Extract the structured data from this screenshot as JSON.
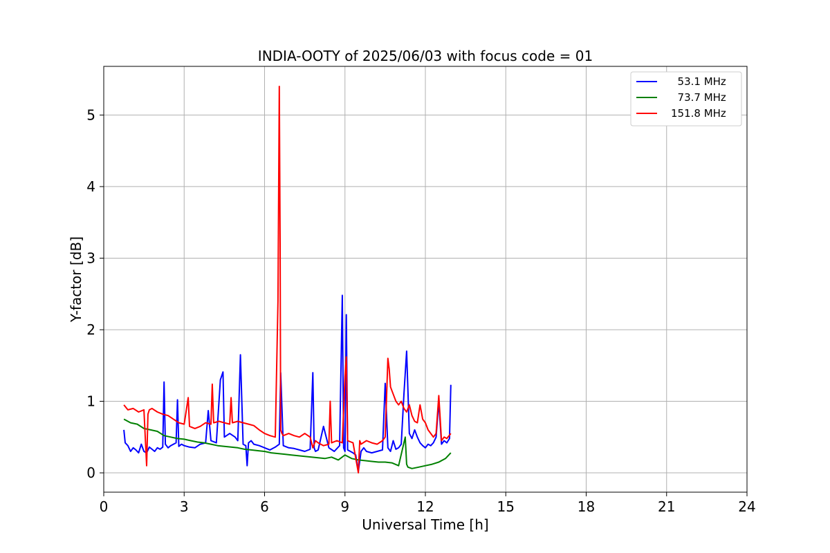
{
  "chart_data": {
    "type": "line",
    "title": "INDIA-OOTY of 2025/06/03 with focus code = 01",
    "xlabel": "Universal Time [h]",
    "ylabel": "Y-factor [dB]",
    "xlim": [
      0,
      24
    ],
    "ylim": [
      -0.27,
      5.68
    ],
    "xticks": [
      0,
      3,
      6,
      9,
      12,
      15,
      18,
      21,
      24
    ],
    "yticks": [
      0,
      1,
      2,
      3,
      4,
      5
    ],
    "grid": true,
    "legend_position": "top-right",
    "series": [
      {
        "name": "  53.1 MHz",
        "color": "#0000ff",
        "x": [
          0.75,
          0.8,
          0.9,
          1.0,
          1.1,
          1.2,
          1.3,
          1.4,
          1.5,
          1.6,
          1.7,
          1.8,
          1.9,
          2.0,
          2.1,
          2.2,
          2.25,
          2.3,
          2.4,
          2.5,
          2.6,
          2.7,
          2.75,
          2.8,
          2.9,
          3.0,
          3.2,
          3.4,
          3.6,
          3.8,
          3.9,
          4.0,
          4.2,
          4.35,
          4.45,
          4.5,
          4.7,
          4.9,
          5.0,
          5.1,
          5.2,
          5.3,
          5.35,
          5.4,
          5.5,
          5.6,
          5.8,
          6.0,
          6.2,
          6.4,
          6.55,
          6.6,
          6.7,
          6.9,
          7.1,
          7.3,
          7.5,
          7.7,
          7.8,
          7.85,
          7.9,
          8.0,
          8.2,
          8.4,
          8.6,
          8.8,
          8.9,
          8.95,
          9.0,
          9.05,
          9.1,
          9.2,
          9.3,
          9.4,
          9.5,
          9.6,
          9.7,
          9.8,
          10.0,
          10.2,
          10.4,
          10.5,
          10.6,
          10.7,
          10.8,
          10.9,
          11.0,
          11.1,
          11.2,
          11.3,
          11.4,
          11.5,
          11.6,
          11.7,
          11.8,
          11.9,
          12.0,
          12.1,
          12.2,
          12.3,
          12.4,
          12.5,
          12.6,
          12.7,
          12.8,
          12.9,
          12.95
        ],
        "values": [
          0.6,
          0.42,
          0.38,
          0.3,
          0.35,
          0.32,
          0.28,
          0.4,
          0.3,
          0.28,
          0.36,
          0.33,
          0.3,
          0.35,
          0.33,
          0.36,
          1.27,
          0.4,
          0.35,
          0.38,
          0.4,
          0.42,
          1.02,
          0.37,
          0.4,
          0.38,
          0.36,
          0.35,
          0.4,
          0.42,
          0.87,
          0.45,
          0.42,
          1.3,
          1.41,
          0.5,
          0.55,
          0.5,
          0.45,
          1.65,
          0.4,
          0.38,
          0.1,
          0.42,
          0.45,
          0.4,
          0.38,
          0.35,
          0.32,
          0.36,
          0.4,
          1.4,
          0.38,
          0.35,
          0.34,
          0.32,
          0.3,
          0.33,
          1.4,
          0.35,
          0.3,
          0.32,
          0.65,
          0.35,
          0.3,
          0.38,
          2.48,
          0.35,
          0.3,
          2.21,
          0.32,
          0.3,
          0.28,
          0.25,
          0.02,
          0.3,
          0.35,
          0.3,
          0.28,
          0.3,
          0.32,
          1.25,
          0.35,
          0.3,
          0.45,
          0.33,
          0.35,
          0.4,
          1.1,
          1.7,
          0.55,
          0.48,
          0.6,
          0.5,
          0.42,
          0.38,
          0.35,
          0.4,
          0.38,
          0.42,
          0.5,
          1.0,
          0.4,
          0.45,
          0.42,
          0.48,
          1.23
        ]
      },
      {
        "name": "  73.7 MHz",
        "color": "#008000",
        "x": [
          0.75,
          1.0,
          1.25,
          1.5,
          1.75,
          2.0,
          2.25,
          2.5,
          2.75,
          3.0,
          3.25,
          3.5,
          3.75,
          4.0,
          4.25,
          4.5,
          4.75,
          5.0,
          5.25,
          5.5,
          5.75,
          6.0,
          6.25,
          6.5,
          6.75,
          7.0,
          7.25,
          7.5,
          7.75,
          8.0,
          8.25,
          8.5,
          8.75,
          9.0,
          9.25,
          9.5,
          9.75,
          10.0,
          10.25,
          10.5,
          10.75,
          11.0,
          11.25,
          11.3,
          11.35,
          11.5,
          11.75,
          12.0,
          12.25,
          12.5,
          12.75,
          12.95
        ],
        "values": [
          0.75,
          0.7,
          0.68,
          0.62,
          0.6,
          0.58,
          0.52,
          0.5,
          0.48,
          0.47,
          0.45,
          0.43,
          0.42,
          0.4,
          0.38,
          0.37,
          0.36,
          0.35,
          0.33,
          0.32,
          0.31,
          0.3,
          0.28,
          0.27,
          0.26,
          0.25,
          0.24,
          0.23,
          0.22,
          0.21,
          0.2,
          0.22,
          0.18,
          0.25,
          0.2,
          0.18,
          0.17,
          0.16,
          0.15,
          0.15,
          0.14,
          0.1,
          0.5,
          0.12,
          0.08,
          0.06,
          0.08,
          0.1,
          0.12,
          0.15,
          0.2,
          0.28
        ]
      },
      {
        "name": "151.8 MHz",
        "color": "#ff0000",
        "x": [
          0.75,
          0.9,
          1.1,
          1.3,
          1.5,
          1.6,
          1.65,
          1.7,
          1.8,
          2.0,
          2.2,
          2.4,
          2.6,
          2.8,
          3.0,
          3.15,
          3.2,
          3.4,
          3.6,
          3.8,
          4.0,
          4.05,
          4.1,
          4.3,
          4.5,
          4.7,
          4.75,
          4.8,
          5.0,
          5.2,
          5.4,
          5.6,
          5.8,
          6.0,
          6.2,
          6.4,
          6.5,
          6.55,
          6.58,
          6.6,
          6.65,
          6.7,
          6.9,
          7.1,
          7.3,
          7.5,
          7.7,
          7.8,
          7.9,
          8.0,
          8.2,
          8.4,
          8.45,
          8.5,
          8.7,
          8.9,
          9.0,
          9.05,
          9.1,
          9.3,
          9.5,
          9.55,
          9.6,
          9.8,
          10.0,
          10.2,
          10.4,
          10.5,
          10.6,
          10.65,
          10.7,
          10.8,
          10.9,
          11.0,
          11.1,
          11.2,
          11.3,
          11.4,
          11.5,
          11.6,
          11.7,
          11.8,
          11.9,
          12.0,
          12.1,
          12.2,
          12.3,
          12.4,
          12.5,
          12.6,
          12.7,
          12.8,
          12.95
        ],
        "values": [
          0.95,
          0.88,
          0.9,
          0.85,
          0.88,
          0.1,
          0.82,
          0.88,
          0.9,
          0.85,
          0.82,
          0.8,
          0.75,
          0.7,
          0.68,
          1.05,
          0.65,
          0.62,
          0.65,
          0.7,
          0.68,
          1.24,
          0.7,
          0.72,
          0.7,
          0.68,
          1.05,
          0.7,
          0.72,
          0.7,
          0.68,
          0.66,
          0.6,
          0.55,
          0.52,
          0.5,
          2.4,
          5.4,
          3.2,
          0.6,
          0.55,
          0.52,
          0.55,
          0.52,
          0.5,
          0.55,
          0.5,
          0.35,
          0.45,
          0.42,
          0.38,
          0.4,
          1.0,
          0.42,
          0.45,
          0.42,
          1.35,
          1.62,
          0.45,
          0.42,
          0.0,
          0.45,
          0.4,
          0.45,
          0.42,
          0.4,
          0.45,
          0.5,
          1.6,
          1.45,
          1.2,
          1.1,
          1.0,
          0.95,
          1.0,
          0.9,
          0.85,
          0.95,
          0.8,
          0.72,
          0.7,
          0.95,
          0.75,
          0.7,
          0.6,
          0.55,
          0.5,
          0.55,
          1.08,
          0.45,
          0.5,
          0.48,
          0.55
        ]
      }
    ]
  }
}
